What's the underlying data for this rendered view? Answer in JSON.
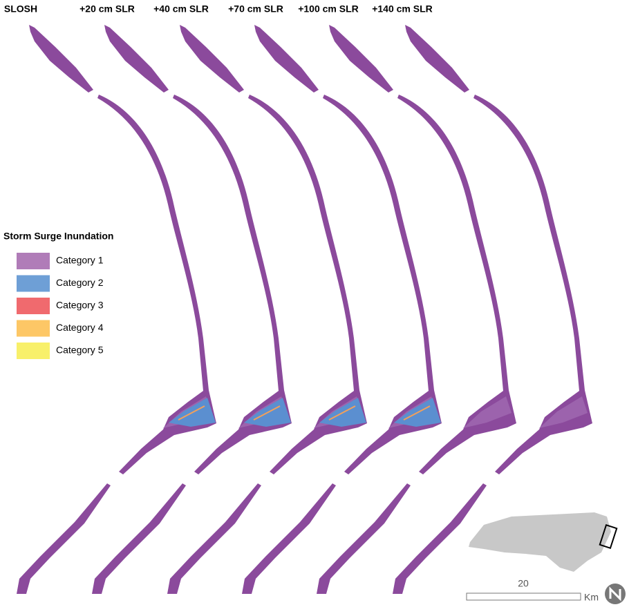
{
  "columns": [
    "SLOSH",
    "+20 cm SLR",
    "+40 cm SLR",
    "+70 cm SLR",
    "+100 cm SLR",
    "+140 cm SLR"
  ],
  "legend": {
    "title": "Storm Surge Inundation",
    "items": [
      {
        "label": "Category 1",
        "color": "#b07cb8"
      },
      {
        "label": "Category 2",
        "color": "#6e9fd6"
      },
      {
        "label": "Category 3",
        "color": "#f06a6e"
      },
      {
        "label": "Category 4",
        "color": "#fdc766"
      },
      {
        "label": "Category 5",
        "color": "#f8f06a"
      }
    ]
  },
  "scale_bar": {
    "label": "20",
    "unit": "Km"
  }
}
